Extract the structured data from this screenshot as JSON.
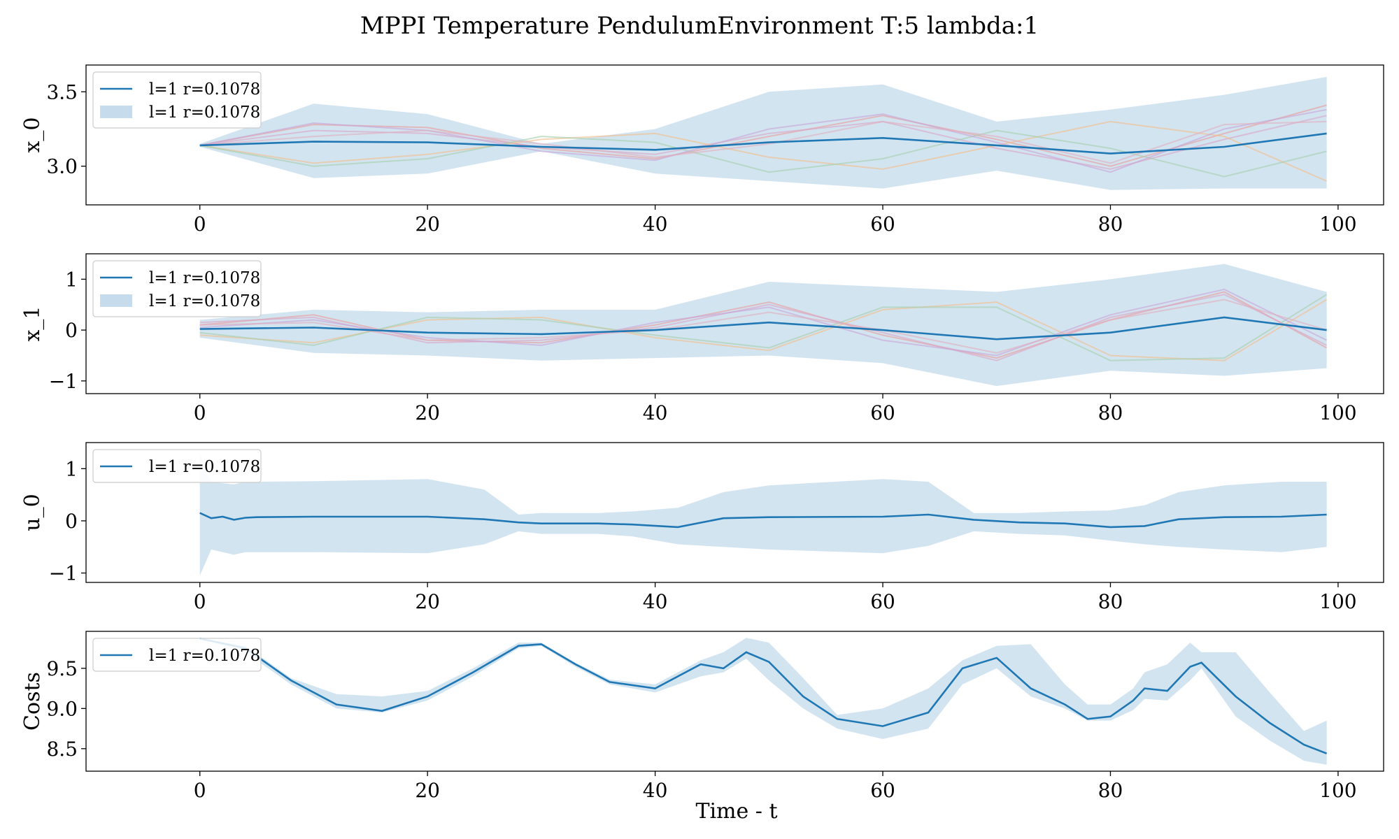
{
  "figure": {
    "title": "MPPI Temperature PendulumEnvironment T:5 lambda:1",
    "xlabel": "Time - t"
  },
  "colors": {
    "main": "#1f77b4",
    "band": "#aecde5",
    "samples": [
      "#e7a0a0",
      "#d8a8c8",
      "#f0c090",
      "#a8d0b0",
      "#c8a8d8",
      "#e0b0c0"
    ]
  },
  "chart_data": [
    {
      "type": "line",
      "ylabel": "x_0",
      "xlim": [
        -10,
        104
      ],
      "ylim": [
        2.74,
        3.68
      ],
      "xticks": [
        0,
        20,
        40,
        60,
        80,
        100
      ],
      "yticks": [
        3.0,
        3.5
      ],
      "ytick_labels": [
        "3.0",
        "3.5"
      ],
      "legend": {
        "position": "upper left",
        "entries": [
          {
            "kind": "line",
            "label": "l=1 r=0.1078"
          },
          {
            "kind": "band",
            "label": "l=1 r=0.1078"
          }
        ]
      },
      "x": [
        0,
        10,
        20,
        30,
        40,
        50,
        60,
        70,
        80,
        90,
        99
      ],
      "series": [
        {
          "role": "mean",
          "values": [
            3.14,
            3.165,
            3.16,
            3.13,
            3.11,
            3.16,
            3.19,
            3.14,
            3.085,
            3.13,
            3.22
          ]
        }
      ],
      "band": {
        "upper": [
          3.15,
          3.42,
          3.35,
          3.15,
          3.25,
          3.5,
          3.55,
          3.3,
          3.38,
          3.48,
          3.6
        ],
        "lower": [
          3.13,
          2.92,
          2.95,
          3.1,
          2.95,
          2.9,
          2.85,
          2.97,
          2.84,
          2.85,
          2.85
        ]
      },
      "samples": [
        [
          3.14,
          3.28,
          3.26,
          3.12,
          3.05,
          3.2,
          3.34,
          3.18,
          3.0,
          3.22,
          3.41
        ],
        [
          3.14,
          3.24,
          3.22,
          3.13,
          3.08,
          3.22,
          3.3,
          3.12,
          2.98,
          3.18,
          3.34
        ],
        [
          3.14,
          3.02,
          3.08,
          3.18,
          3.22,
          3.06,
          2.98,
          3.14,
          3.3,
          3.2,
          2.9
        ],
        [
          3.14,
          3.0,
          3.05,
          3.2,
          3.16,
          2.96,
          3.05,
          3.24,
          3.12,
          2.93,
          3.1
        ],
        [
          3.14,
          3.29,
          3.24,
          3.1,
          3.04,
          3.25,
          3.35,
          3.16,
          2.96,
          3.25,
          3.38
        ],
        [
          3.14,
          3.2,
          3.24,
          3.15,
          3.06,
          3.15,
          3.3,
          3.2,
          3.02,
          3.28,
          3.3
        ]
      ]
    },
    {
      "type": "line",
      "ylabel": "x_1",
      "xlim": [
        -10,
        104
      ],
      "ylim": [
        -1.25,
        1.5
      ],
      "xticks": [
        0,
        20,
        40,
        60,
        80,
        100
      ],
      "yticks": [
        1,
        0,
        -1
      ],
      "ytick_labels": [
        "1",
        "0",
        "−1"
      ],
      "legend": {
        "position": "upper left",
        "entries": [
          {
            "kind": "line",
            "label": "l=1 r=0.1078"
          },
          {
            "kind": "band",
            "label": "l=1 r=0.1078"
          }
        ]
      },
      "x": [
        0,
        10,
        20,
        30,
        40,
        50,
        60,
        70,
        80,
        90,
        99
      ],
      "series": [
        {
          "role": "mean",
          "values": [
            0.02,
            0.05,
            -0.05,
            -0.08,
            0.0,
            0.15,
            0.0,
            -0.18,
            -0.05,
            0.25,
            0.0
          ]
        }
      ],
      "band": {
        "upper": [
          0.2,
          0.4,
          0.35,
          0.4,
          0.4,
          0.95,
          0.85,
          0.75,
          1.0,
          1.3,
          0.75
        ],
        "lower": [
          -0.15,
          -0.45,
          -0.5,
          -0.6,
          -0.55,
          -0.5,
          -0.65,
          -1.1,
          -0.8,
          -0.9,
          -0.75
        ]
      },
      "samples": [
        [
          0.1,
          0.3,
          -0.2,
          -0.25,
          0.1,
          0.55,
          -0.1,
          -0.55,
          0.2,
          0.75,
          -0.35
        ],
        [
          0.15,
          0.25,
          -0.25,
          -0.2,
          0.05,
          0.5,
          -0.05,
          -0.6,
          0.25,
          0.7,
          -0.3
        ],
        [
          -0.1,
          -0.25,
          0.2,
          0.25,
          -0.15,
          -0.4,
          0.4,
          0.55,
          -0.5,
          -0.6,
          0.6
        ],
        [
          -0.05,
          -0.3,
          0.25,
          0.2,
          -0.1,
          -0.35,
          0.45,
          0.45,
          -0.6,
          -0.55,
          0.7
        ],
        [
          0.05,
          0.2,
          -0.15,
          -0.3,
          0.15,
          0.45,
          -0.2,
          -0.5,
          0.3,
          0.8,
          -0.2
        ],
        [
          0.1,
          0.15,
          -0.2,
          -0.15,
          0.0,
          0.35,
          0.0,
          -0.45,
          0.2,
          0.6,
          0.0
        ]
      ]
    },
    {
      "type": "line",
      "ylabel": "u_0",
      "xlim": [
        -10,
        104
      ],
      "ylim": [
        -1.18,
        1.5
      ],
      "xticks": [
        0,
        20,
        40,
        60,
        80,
        100
      ],
      "yticks": [
        1,
        0,
        -1
      ],
      "ytick_labels": [
        "1",
        "0",
        "−1"
      ],
      "legend": {
        "position": "upper left",
        "entries": [
          {
            "kind": "line",
            "label": "l=1 r=0.1078"
          }
        ]
      },
      "x": [
        0,
        1,
        2,
        3,
        4,
        5,
        10,
        20,
        25,
        28,
        30,
        35,
        38,
        42,
        46,
        50,
        60,
        64,
        68,
        72,
        76,
        80,
        83,
        86,
        90,
        95,
        99
      ],
      "series": [
        {
          "role": "mean",
          "values": [
            0.15,
            0.05,
            0.08,
            0.02,
            0.06,
            0.07,
            0.08,
            0.08,
            0.03,
            -0.03,
            -0.05,
            -0.05,
            -0.07,
            -0.12,
            0.05,
            0.07,
            0.08,
            0.12,
            0.02,
            -0.03,
            -0.05,
            -0.12,
            -0.1,
            0.03,
            0.07,
            0.08,
            0.12
          ]
        }
      ],
      "band": {
        "upper": [
          1.3,
          0.75,
          0.72,
          0.7,
          0.75,
          0.75,
          0.76,
          0.8,
          0.6,
          0.12,
          0.15,
          0.15,
          0.18,
          0.25,
          0.55,
          0.68,
          0.8,
          0.75,
          0.15,
          0.15,
          0.18,
          0.2,
          0.3,
          0.55,
          0.68,
          0.75,
          0.75
        ],
        "lower": [
          -1.05,
          -0.55,
          -0.6,
          -0.65,
          -0.6,
          -0.6,
          -0.6,
          -0.62,
          -0.45,
          -0.2,
          -0.25,
          -0.25,
          -0.3,
          -0.45,
          -0.5,
          -0.55,
          -0.62,
          -0.48,
          -0.2,
          -0.25,
          -0.28,
          -0.38,
          -0.45,
          -0.5,
          -0.55,
          -0.6,
          -0.5
        ]
      },
      "samples": []
    },
    {
      "type": "line",
      "ylabel": "Costs",
      "xlim": [
        -10,
        104
      ],
      "ylim": [
        8.22,
        9.96
      ],
      "xticks": [
        0,
        20,
        40,
        60,
        80,
        100
      ],
      "yticks": [
        9.5,
        9.0,
        8.5
      ],
      "ytick_labels": [
        "9.5",
        "9.0",
        "8.5"
      ],
      "legend": {
        "position": "upper left",
        "entries": [
          {
            "kind": "line",
            "label": "l=1 r=0.1078"
          }
        ]
      },
      "x": [
        0,
        4,
        8,
        12,
        16,
        20,
        24,
        28,
        30,
        33,
        36,
        40,
        44,
        46,
        48,
        50,
        53,
        56,
        60,
        64,
        67,
        70,
        73,
        76,
        78,
        80,
        82,
        83,
        85,
        87,
        88,
        91,
        94,
        97,
        99
      ],
      "series": [
        {
          "role": "mean",
          "values": [
            9.87,
            9.75,
            9.35,
            9.05,
            8.97,
            9.15,
            9.45,
            9.78,
            9.8,
            9.55,
            9.33,
            9.25,
            9.55,
            9.5,
            9.7,
            9.58,
            9.15,
            8.87,
            8.78,
            8.95,
            9.5,
            9.63,
            9.25,
            9.05,
            8.87,
            8.9,
            9.1,
            9.25,
            9.22,
            9.52,
            9.57,
            9.15,
            8.82,
            8.55,
            8.44
          ]
        }
      ],
      "band": {
        "upper": [
          9.88,
          9.78,
          9.38,
          9.18,
          9.15,
          9.22,
          9.5,
          9.82,
          9.82,
          9.57,
          9.36,
          9.3,
          9.6,
          9.7,
          9.88,
          9.82,
          9.38,
          8.92,
          9.0,
          9.25,
          9.6,
          9.78,
          9.8,
          9.3,
          9.05,
          9.05,
          9.25,
          9.45,
          9.55,
          9.82,
          9.7,
          9.7,
          9.2,
          8.72,
          8.85
        ],
        "lower": [
          9.87,
          9.7,
          9.3,
          9.0,
          8.95,
          9.1,
          9.4,
          9.75,
          9.78,
          9.52,
          9.3,
          9.2,
          9.4,
          9.45,
          9.62,
          9.35,
          9.0,
          8.75,
          8.62,
          8.75,
          9.3,
          9.5,
          9.15,
          9.0,
          8.85,
          8.85,
          8.98,
          9.12,
          9.1,
          9.35,
          9.5,
          8.9,
          8.6,
          8.35,
          8.3
        ]
      },
      "samples": []
    }
  ]
}
